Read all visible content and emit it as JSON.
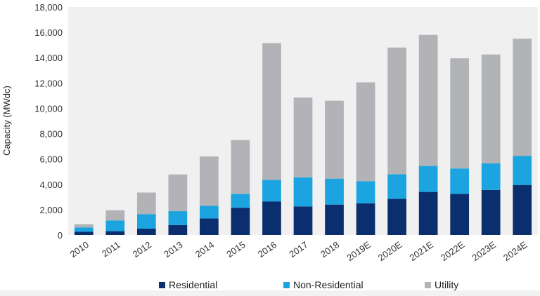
{
  "chart_data": {
    "type": "bar",
    "stacked": true,
    "categories": [
      "2010",
      "2011",
      "2012",
      "2013",
      "2014",
      "2015",
      "2016",
      "2017",
      "2018",
      "2019E",
      "2020E",
      "2021E",
      "2022E",
      "2023E",
      "2024E"
    ],
    "series": [
      {
        "name": "Residential",
        "color": "#0b2f6e",
        "values": [
          250,
          300,
          500,
          780,
          1300,
          2150,
          2650,
          2250,
          2400,
          2500,
          2850,
          3400,
          3250,
          3550,
          3950
        ]
      },
      {
        "name": "Non-Residential",
        "color": "#1ba4e0",
        "values": [
          350,
          850,
          1150,
          1100,
          1000,
          1100,
          1700,
          2300,
          2050,
          1750,
          1950,
          2050,
          2000,
          2100,
          2300
        ]
      },
      {
        "name": "Utility",
        "color": "#b1b3b6",
        "values": [
          250,
          800,
          1700,
          2900,
          3900,
          4250,
          10800,
          6300,
          6150,
          7800,
          10000,
          10350,
          8700,
          8600,
          9250
        ]
      }
    ],
    "ylabel": "Capacity (MWdc)",
    "ylim": [
      0,
      18000
    ],
    "yticks": [
      "0",
      "2,000",
      "4,000",
      "6,000",
      "8,000",
      "10,000",
      "12,000",
      "14,000",
      "16,000",
      "18,000"
    ],
    "grid": false,
    "legend": "bottom"
  }
}
